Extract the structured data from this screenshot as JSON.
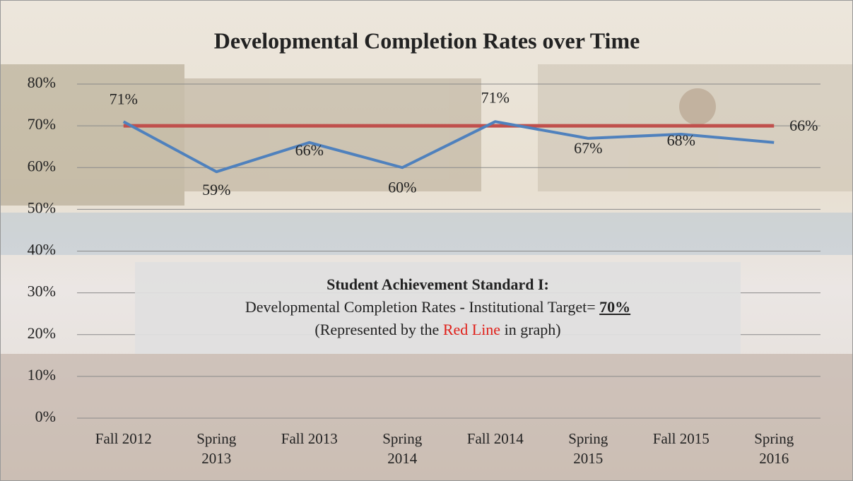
{
  "chart_data": {
    "type": "line",
    "title": "Developmental Completion Rates over Time",
    "categories": [
      "Fall 2012",
      "Spring 2013",
      "Fall 2013",
      "Spring 2014",
      "Fall 2014",
      "Spring 2015",
      "Fall 2015",
      "Spring 2016"
    ],
    "series": [
      {
        "color": "#4f81bd",
        "values": [
          71,
          59,
          66,
          60,
          71,
          67,
          68,
          66
        ],
        "value_labels": [
          "71%",
          "59%",
          "66%",
          "60%",
          "71%",
          "67%",
          "68%",
          "66%"
        ]
      }
    ],
    "target_line": {
      "value": 70,
      "label": "70%",
      "color": "#c0504d"
    },
    "ylim": [
      0,
      80
    ],
    "yticks": [
      {
        "value": 0,
        "label": "0%"
      },
      {
        "value": 10,
        "label": "10%"
      },
      {
        "value": 20,
        "label": "20%"
      },
      {
        "value": 30,
        "label": "30%"
      },
      {
        "value": 40,
        "label": "40%"
      },
      {
        "value": 50,
        "label": "50%"
      },
      {
        "value": 60,
        "label": "60%"
      },
      {
        "value": 70,
        "label": "70%"
      },
      {
        "value": 80,
        "label": "80%"
      }
    ],
    "grid": true,
    "annotation": {
      "heading": "Student Achievement Standard I:",
      "line1": "Developmental Completion Rates - Institutional Target= ",
      "line2_start": "(Represented by the ",
      "line2_red": "Red Line",
      "line2_end": " in graph)"
    }
  }
}
